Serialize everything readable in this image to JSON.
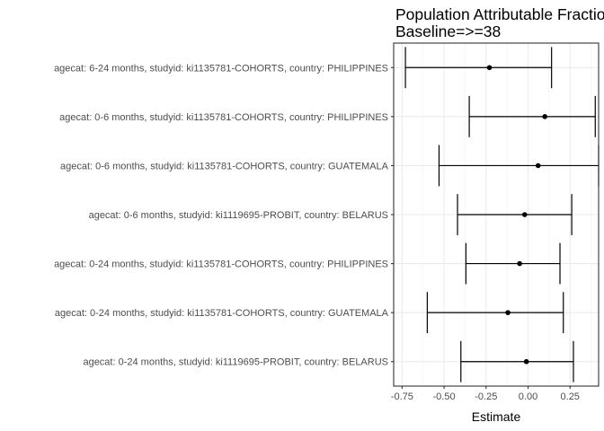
{
  "chart_data": {
    "type": "scatter",
    "style": "forest-plot-with-error-bars",
    "title_lines": [
      "Population Attributable Fraction",
      "Baseline=>=38"
    ],
    "xlabel": "Estimate",
    "ylabel": "",
    "xlim": [
      -0.8,
      0.42
    ],
    "x_ticks": [
      -0.75,
      -0.5,
      -0.25,
      0.0,
      0.25
    ],
    "x_tick_labels": [
      "-0.75",
      "-0.50",
      "-0.25",
      "0.00",
      "0.25"
    ],
    "grid": true,
    "categories": [
      "agecat: 6-24 months, studyid: ki1135781-COHORTS, country: PHILIPPINES",
      "agecat: 0-6 months, studyid: ki1135781-COHORTS, country: PHILIPPINES",
      "agecat: 0-6 months, studyid: ki1135781-COHORTS, country: GUATEMALA",
      "agecat: 0-6 months, studyid: ki1119695-PROBIT, country: BELARUS",
      "agecat: 0-24 months, studyid: ki1135781-COHORTS, country: PHILIPPINES",
      "agecat: 0-24 months, studyid: ki1135781-COHORTS, country: GUATEMALA",
      "agecat: 0-24 months, studyid: ki1119695-PROBIT, country: BELARUS"
    ],
    "estimates": [
      -0.23,
      0.1,
      0.06,
      -0.02,
      -0.05,
      -0.12,
      -0.01
    ],
    "lower": [
      -0.73,
      -0.35,
      -0.53,
      -0.42,
      -0.37,
      -0.6,
      -0.4
    ],
    "upper": [
      0.14,
      0.4,
      0.42,
      0.26,
      0.19,
      0.21,
      0.27
    ]
  }
}
